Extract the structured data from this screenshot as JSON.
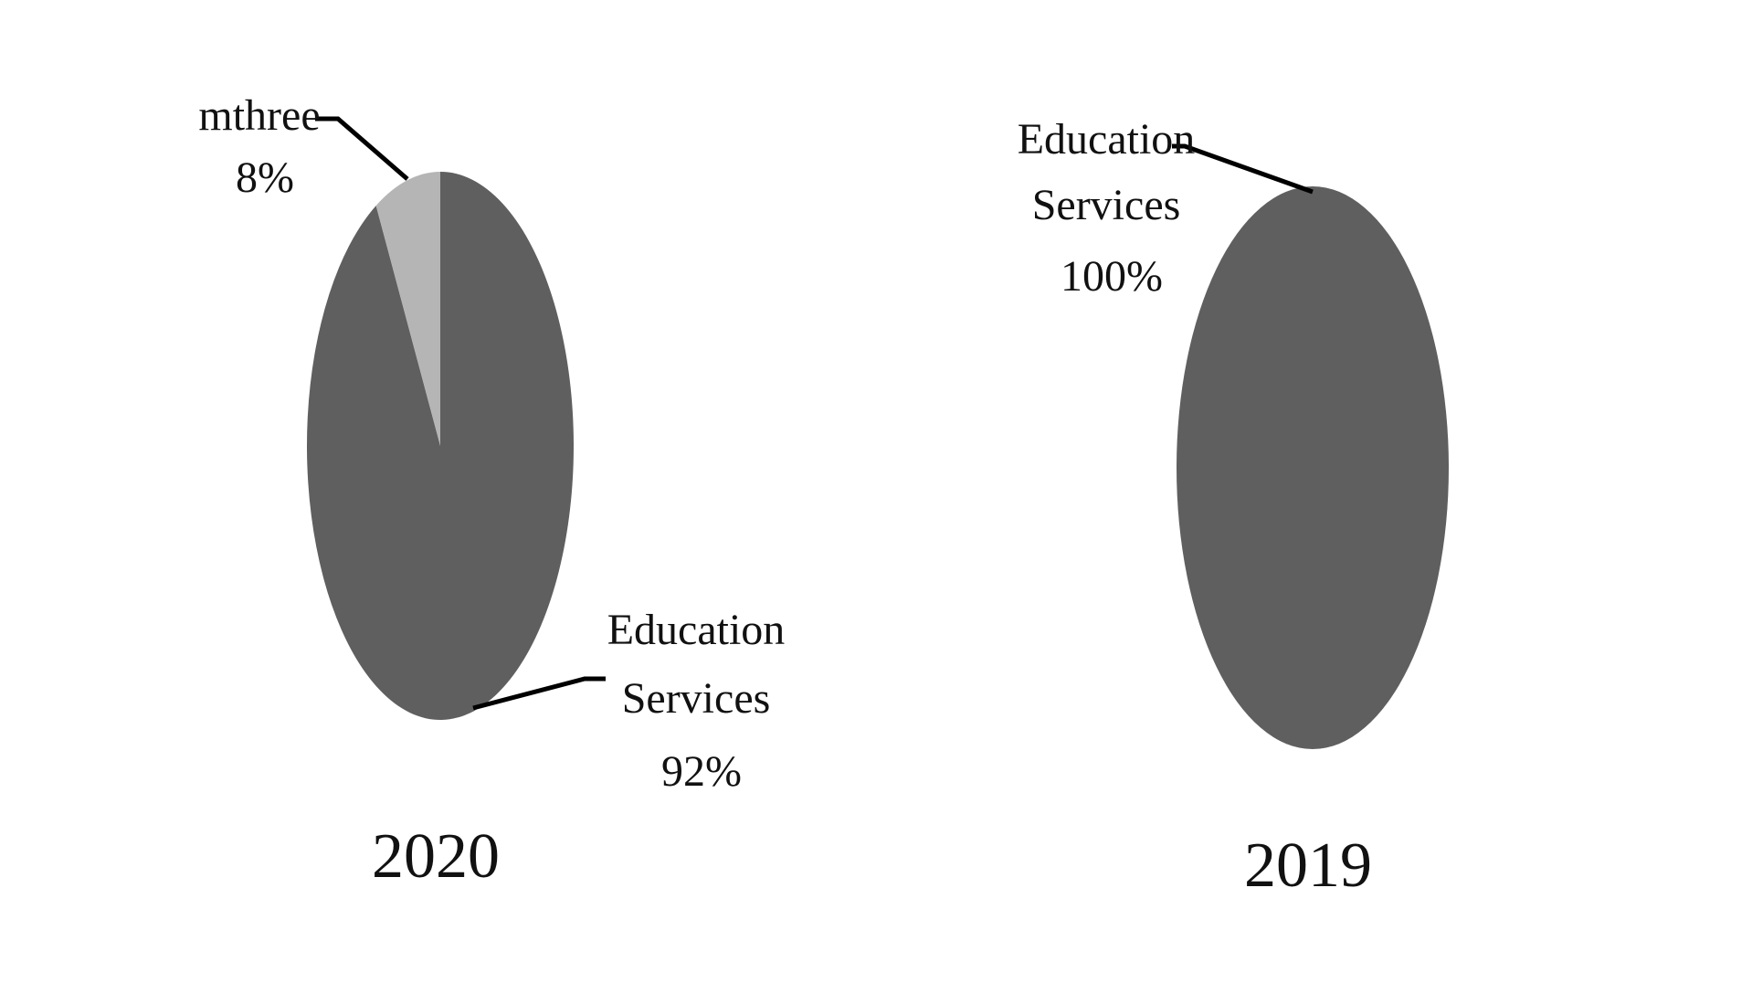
{
  "chart_data": [
    {
      "type": "pie",
      "title": "2020",
      "categories": [
        "Education Services",
        "mthree"
      ],
      "values": [
        92,
        8
      ],
      "labels": [
        {
          "name": "Education Services",
          "value_label": "92%"
        },
        {
          "name": "mthree",
          "value_label": "8%"
        }
      ],
      "colors": [
        "#5f5f5f",
        "#b5b5b5"
      ],
      "legend": "none"
    },
    {
      "type": "pie",
      "title": "2019",
      "categories": [
        "Education Services"
      ],
      "values": [
        100
      ],
      "labels": [
        {
          "name": "Education Services",
          "value_label": "100%"
        }
      ],
      "colors": [
        "#5f5f5f"
      ],
      "legend": "none"
    }
  ]
}
